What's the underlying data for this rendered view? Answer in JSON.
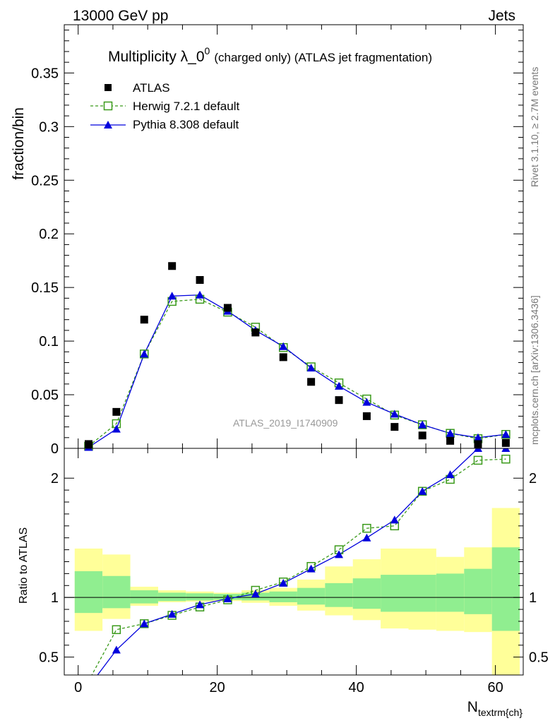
{
  "header": {
    "left": "13000 GeV pp",
    "right": "Jets"
  },
  "side_texts": {
    "rivet": "Rivet 3.1.10, ≥ 2.7M events",
    "mcplots": "mcplots.cern.ch [arXiv:1306.3436]"
  },
  "watermark": "ATLAS_2019_I1740909",
  "chart_data": [
    {
      "type": "scatter",
      "title": "Multiplicity λ_0^0 (charged only) (ATLAS jet fragmentation)",
      "title_main": "Multiplicity λ_0",
      "title_sup": "0",
      "title_rest": "(charged only) (ATLAS jet fragmentation)",
      "ylabel": "fraction/bin",
      "xlim": [
        -2,
        64
      ],
      "ylim": [
        0,
        0.395
      ],
      "yticks": [
        0,
        0.05,
        0.1,
        0.15,
        0.2,
        0.25,
        0.3,
        0.35
      ],
      "ytick_labels": [
        "0",
        "0.05",
        "0.1",
        "0.15",
        "0.2",
        "0.25",
        "0.3",
        "0.35"
      ],
      "x": [
        1.5,
        5.5,
        9.5,
        13.5,
        17.5,
        21.5,
        25.5,
        29.5,
        33.5,
        37.5,
        41.5,
        45.5,
        49.5,
        53.5,
        57.5,
        61.5
      ],
      "series": [
        {
          "name": "ATLAS",
          "style": "markers",
          "color": "#000000",
          "values": [
            0.004,
            0.034,
            0.12,
            0.17,
            0.157,
            0.131,
            0.108,
            0.085,
            0.062,
            0.045,
            0.03,
            0.02,
            0.012,
            0.007,
            0.004,
            0.005
          ]
        },
        {
          "name": "Herwig 7.2.1 default",
          "style": "dashed-open-square",
          "color": "#3a9a1a",
          "values": [
            0.002,
            0.023,
            0.088,
            0.137,
            0.139,
            0.127,
            0.113,
            0.094,
            0.076,
            0.061,
            0.046,
            0.031,
            0.022,
            0.014,
            0.009,
            0.013
          ]
        },
        {
          "name": "Pythia 8.308 default",
          "style": "solid-filled-triangle",
          "color": "#0000dd",
          "values": [
            0.001,
            0.018,
            0.088,
            0.142,
            0.143,
            0.128,
            0.11,
            0.095,
            0.075,
            0.058,
            0.043,
            0.032,
            0.022,
            0.014,
            0.01,
            0.013
          ]
        }
      ]
    },
    {
      "type": "line",
      "ylabel": "Ratio to ATLAS",
      "xlabel": "N",
      "xlabel_sub": "textrm{ch}",
      "xlim": [
        -2,
        64
      ],
      "ylim": [
        0.35,
        2.25
      ],
      "xticks": [
        0,
        20,
        40,
        60
      ],
      "xtick_labels": [
        "0",
        "20",
        "40",
        "60"
      ],
      "yticks": [
        0.5,
        1,
        2
      ],
      "ytick_labels": [
        "0.5",
        "1",
        "2"
      ],
      "bin_edges": [
        -0.5,
        3.5,
        7.5,
        11.5,
        15.5,
        19.5,
        23.5,
        27.5,
        31.5,
        35.5,
        39.5,
        43.5,
        47.5,
        51.5,
        55.5,
        59.5,
        63.5
      ],
      "band_inner": {
        "color": "#90ee90",
        "low": [
          0.87,
          0.91,
          0.95,
          0.97,
          0.975,
          0.98,
          0.975,
          0.96,
          0.94,
          0.92,
          0.905,
          0.88,
          0.88,
          0.88,
          0.86,
          0.72
        ],
        "high": [
          1.22,
          1.18,
          1.06,
          1.04,
          1.035,
          1.03,
          1.04,
          1.05,
          1.08,
          1.12,
          1.16,
          1.19,
          1.19,
          1.2,
          1.24,
          1.42
        ]
      },
      "band_outer": {
        "color": "#ffff99",
        "low": [
          0.72,
          0.82,
          0.93,
          0.96,
          0.965,
          0.97,
          0.955,
          0.93,
          0.89,
          0.85,
          0.81,
          0.74,
          0.73,
          0.72,
          0.71,
          0.35
        ],
        "high": [
          1.41,
          1.36,
          1.09,
          1.06,
          1.05,
          1.04,
          1.06,
          1.08,
          1.15,
          1.26,
          1.32,
          1.41,
          1.41,
          1.34,
          1.42,
          1.75
        ]
      },
      "series": [
        {
          "name": "Herwig 7.2.1 default",
          "color": "#3a9a1a",
          "values": [
            0.3,
            0.73,
            0.78,
            0.85,
            0.92,
            0.98,
            1.06,
            1.13,
            1.26,
            1.4,
            1.58,
            1.6,
            1.89,
            1.99,
            2.15,
            2.16
          ]
        },
        {
          "name": "Pythia 8.308 default",
          "color": "#0000dd",
          "values": [
            0.25,
            0.56,
            0.78,
            0.86,
            0.94,
            0.99,
            1.03,
            1.12,
            1.24,
            1.36,
            1.5,
            1.65,
            1.89,
            2.03,
            2.25,
            2.25
          ]
        }
      ],
      "reference_line": 1
    }
  ]
}
